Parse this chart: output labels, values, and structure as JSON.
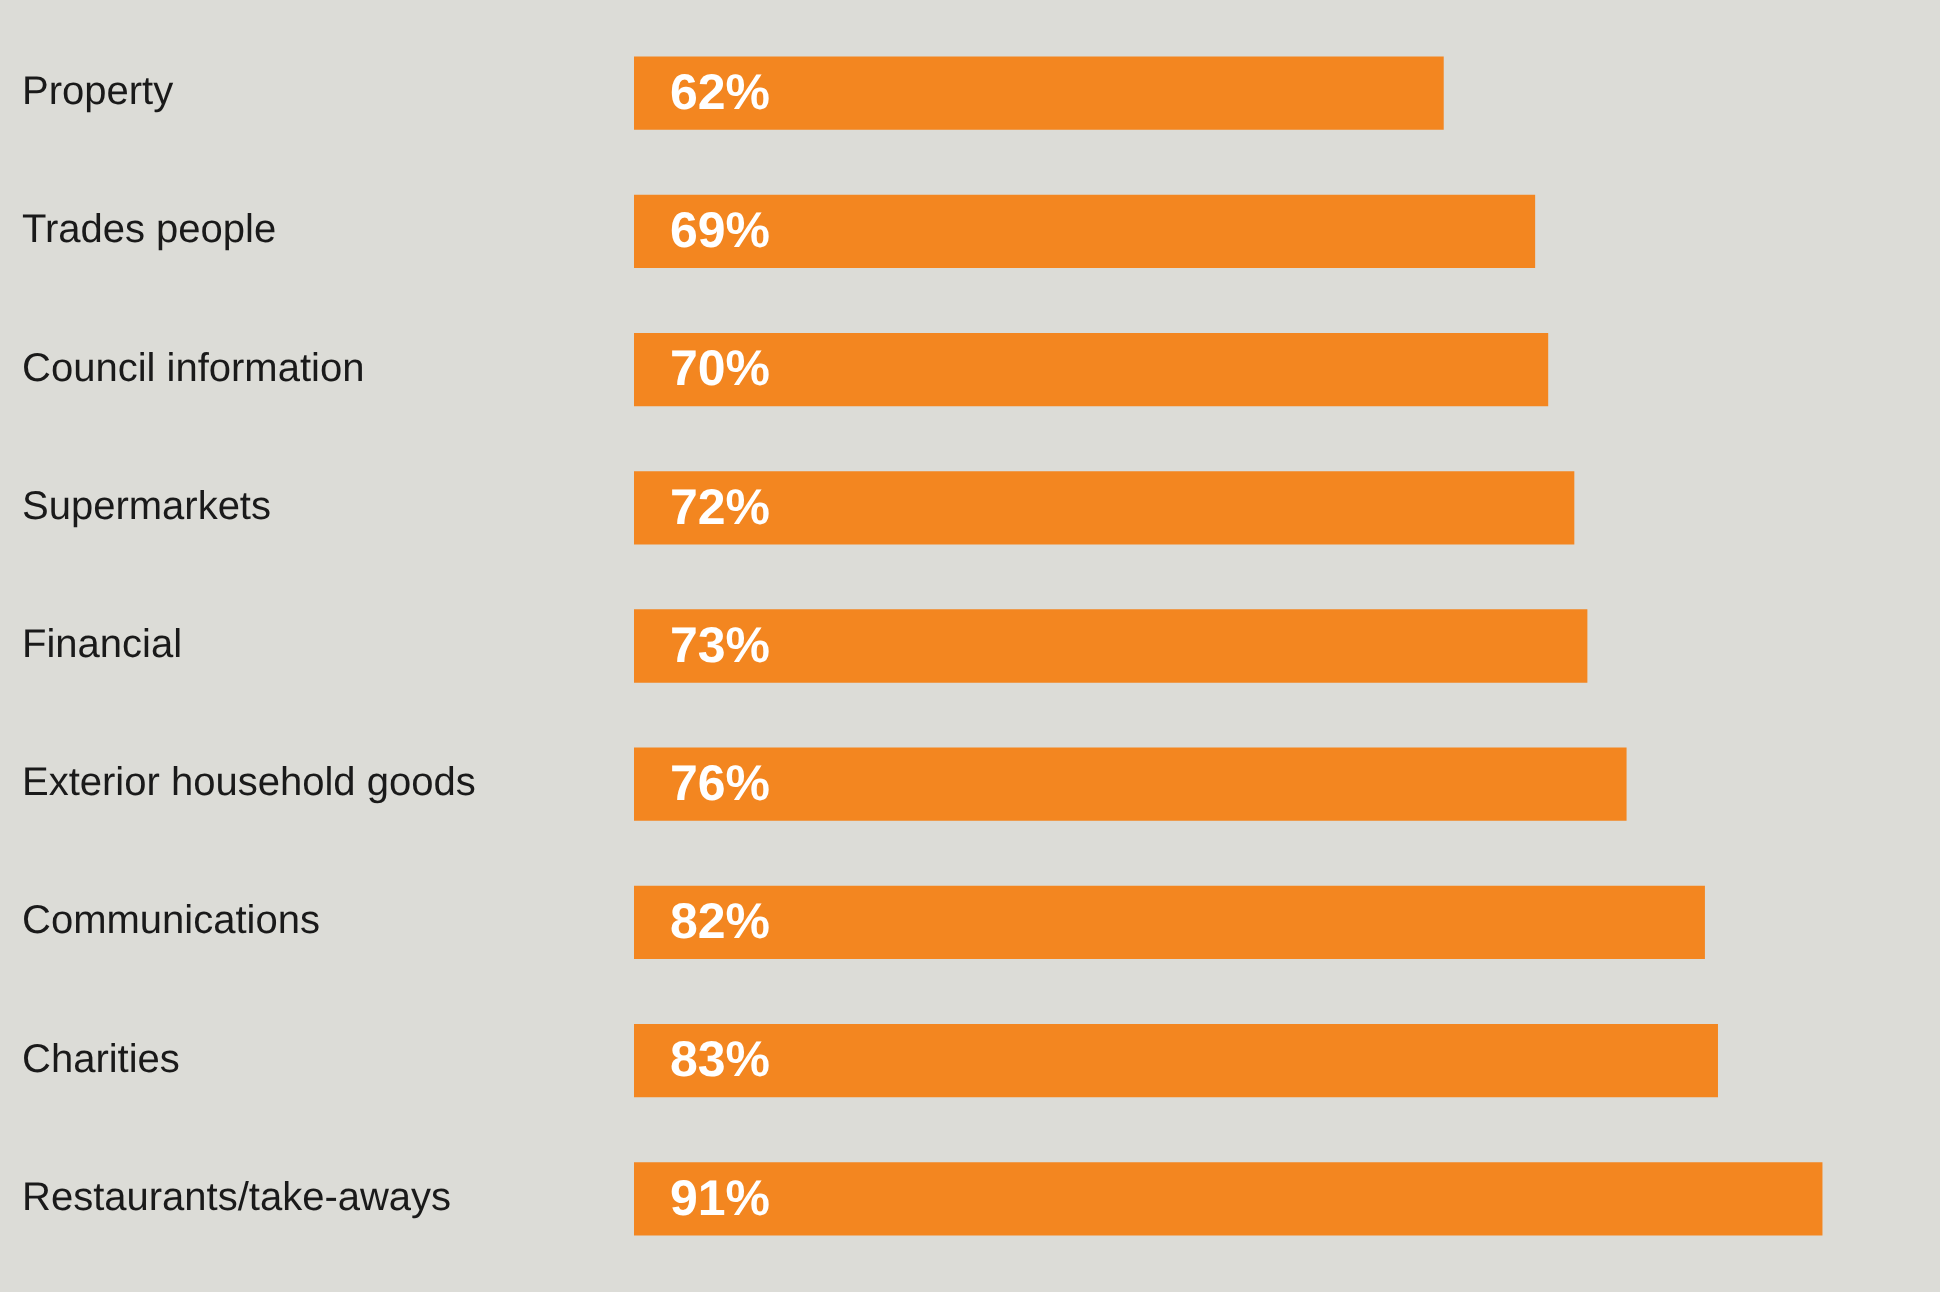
{
  "chart_data": {
    "type": "bar",
    "orientation": "horizontal",
    "categories": [
      "Property",
      "Trades people",
      "Council information",
      "Supermarkets",
      "Financial",
      "Exterior household goods",
      "Communications",
      "Charities",
      "Restaurants/take-aways"
    ],
    "values": [
      62,
      69,
      70,
      72,
      73,
      76,
      82,
      83,
      91
    ],
    "value_labels": [
      "62%",
      "69%",
      "70%",
      "72%",
      "73%",
      "76%",
      "82%",
      "83%",
      "91%"
    ],
    "color": "#f38620",
    "legend": false,
    "tick_labels": "y"
  }
}
